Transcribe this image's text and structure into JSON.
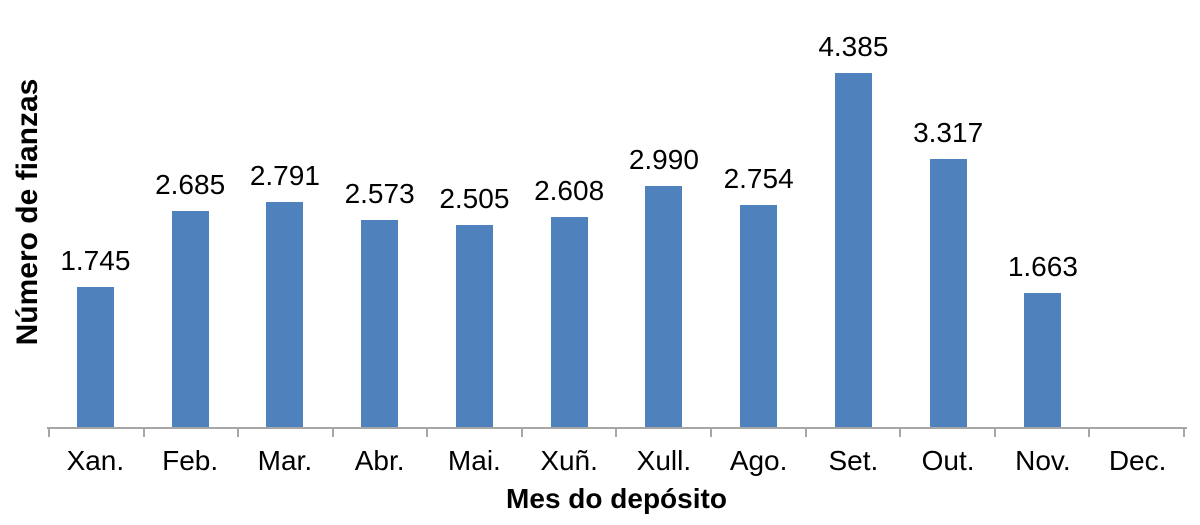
{
  "chart_data": {
    "type": "bar",
    "title": "",
    "xlabel": "Mes do depósito",
    "ylabel": "Número de fianzas",
    "categories": [
      "Xan.",
      "Feb.",
      "Mar.",
      "Abr.",
      "Mai.",
      "Xuñ.",
      "Xull.",
      "Ago.",
      "Set.",
      "Out.",
      "Nov.",
      "Dec."
    ],
    "values": [
      1745,
      2685,
      2791,
      2573,
      2505,
      2608,
      2990,
      2754,
      4385,
      3317,
      1663,
      null
    ],
    "value_labels": [
      "1.745",
      "2.685",
      "2.791",
      "2.573",
      "2.505",
      "2.608",
      "2.990",
      "2.754",
      "4.385",
      "3.317",
      "1.663",
      ""
    ],
    "bar_color": "#4F81BD",
    "axis_color": "#A6A6A6",
    "text_color": "#000000",
    "ylim": [
      0,
      4600
    ],
    "grid": false,
    "legend": false,
    "data_labels": true
  }
}
